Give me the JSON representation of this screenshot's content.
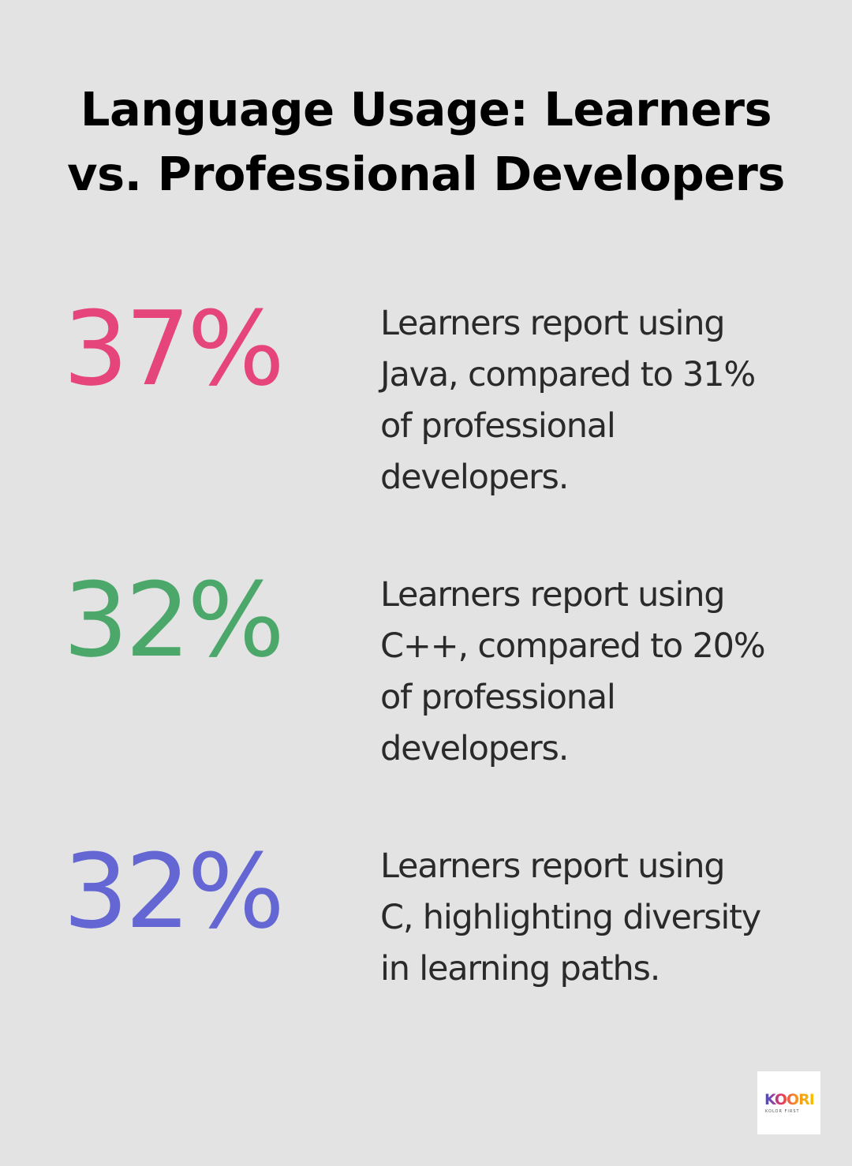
{
  "title": {
    "line1": "Language Usage: Learners",
    "line2": "vs. Professional Developers"
  },
  "stats": [
    {
      "value": "37%",
      "color": "#e5457a",
      "lines": [
        "Learners report using",
        "Java, compared to 31%",
        "of professional",
        "developers."
      ]
    },
    {
      "value": "32%",
      "color": "#4ca86a",
      "lines": [
        "Learners report using",
        "C++, compared to 20%",
        "of professional",
        "developers."
      ]
    },
    {
      "value": "32%",
      "color": "#6466d3",
      "lines": [
        "Learners report using",
        "C, highlighting diversity",
        "in learning paths."
      ]
    }
  ],
  "logo": {
    "text": "KOORI",
    "tagline": "KOLOR FIRST"
  }
}
